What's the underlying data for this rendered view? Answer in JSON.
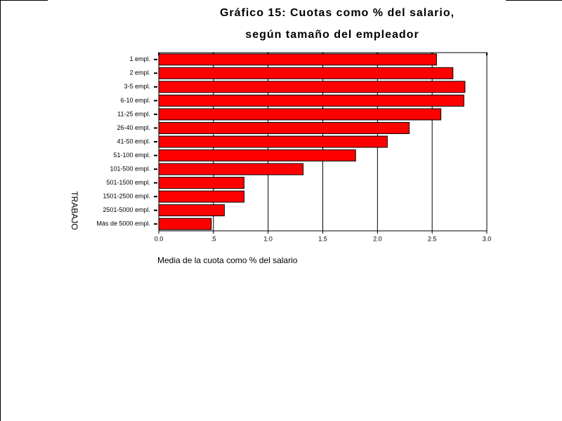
{
  "chart_data": {
    "type": "hbar",
    "title": [
      "Gráfico 15: Cuotas como % del salario,",
      "según tamaño del empleador"
    ],
    "x_label": "Media de la cuota como % del salario",
    "y_label": "TRABAJO",
    "categories": [
      "1 empl.",
      "2 empl.",
      "3-5 empl.",
      "6-10 empl.",
      "11-25 empl.",
      "26-40 empl.",
      "41-50 empl.",
      "51-100 empl.",
      "101-500 empl.",
      "501-1500 empl.",
      "1501-2500 empl.",
      "2501-5000 empl.",
      "Más de 5000 empl."
    ],
    "values": [
      2.54,
      2.69,
      2.8,
      2.79,
      2.58,
      2.29,
      2.09,
      1.8,
      1.32,
      0.78,
      0.78,
      0.6,
      0.48
    ],
    "color": "#ff0000",
    "xlim": [
      0,
      3
    ],
    "xticks": [
      {
        "value": 0,
        "label": "0.0"
      },
      {
        "value": 0.5,
        "label": ".5"
      },
      {
        "value": 1,
        "label": "1.0"
      },
      1.5,
      {
        "value": 2,
        "label": "2.0"
      },
      2.5,
      {
        "value": 3,
        "label": "3.0"
      }
    ],
    "grid": true
  }
}
